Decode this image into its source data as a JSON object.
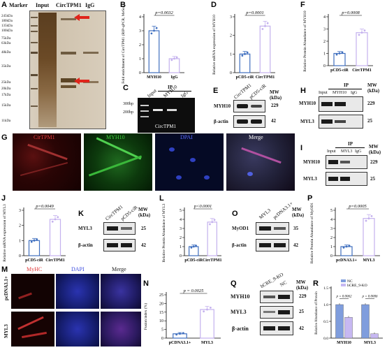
{
  "panels": {
    "A": {
      "letter": "A",
      "lanes": [
        "Marker",
        "Input",
        "CircTPM1",
        "IgG"
      ],
      "mw": [
        "245kDa",
        "180kDa",
        "135kDa",
        "100kDa",
        "75kDa",
        "63kDa",
        "48kDa",
        "35kDa",
        "25kDa",
        "20kDa",
        "17kDa",
        "15kDa",
        "11kDa"
      ]
    },
    "B": {
      "letter": "B",
      "ylabel": "Fold enrichment of CircTPM1 (RIP-qPCR, MeSo)",
      "pval": "p=0.0032",
      "categories": [
        "MYH10",
        "IgG"
      ],
      "values": [
        3.0,
        1.0
      ],
      "ylim": [
        0,
        4
      ],
      "ticks": [
        "0",
        "1",
        "2",
        "3",
        "4"
      ]
    },
    "C": {
      "letter": "C",
      "bp": [
        "300bp",
        "200bp"
      ],
      "lanes": [
        "Input",
        "MYH10",
        "IgG"
      ],
      "ip": "IP",
      "product": "CircTPM1"
    },
    "D": {
      "letter": "D",
      "ylabel": "Relative mRNA expression of MYH10",
      "pval": "p=0.0001",
      "categories": [
        "pCD5-ciR",
        "CircTPM1"
      ],
      "values": [
        1.0,
        2.5
      ],
      "ylim": [
        0,
        3
      ],
      "ticks": [
        "0",
        "1",
        "2",
        "3"
      ]
    },
    "E": {
      "letter": "E",
      "lanes": [
        "CircTPM1",
        "pCD5-ciR"
      ],
      "rows": [
        "MYH10",
        "β-actin"
      ],
      "mw_head": "MW (kDa)",
      "mw": [
        "229",
        "42"
      ]
    },
    "F": {
      "letter": "F",
      "ylabel": "Relative Protein Abundance of MYH10",
      "pval": "p=0.0008",
      "categories": [
        "pCD5-ciR",
        "CircTPM1"
      ],
      "values": [
        1.0,
        2.7
      ],
      "ylim": [
        0,
        4
      ],
      "ticks": [
        "0",
        "1",
        "2",
        "3",
        "4"
      ]
    },
    "G": {
      "letter": "G",
      "titles": [
        "CirTPM1",
        "MYH10",
        "DPAI",
        "Merge"
      ]
    },
    "H": {
      "letter": "H",
      "lanes": [
        "Input",
        "MYH10",
        "IgG"
      ],
      "ip": "IP",
      "rows": [
        "MYH10",
        "MYL3"
      ],
      "mw_head": "MW (kDa)",
      "mw": [
        "229",
        "25"
      ]
    },
    "I": {
      "letter": "I",
      "lanes": [
        "Input",
        "MYL3",
        "IgG"
      ],
      "ip": "IP",
      "rows": [
        "MYH10",
        "MYL3"
      ],
      "mw_head": "MW (kDa)",
      "mw": [
        "229",
        "25"
      ]
    },
    "J": {
      "letter": "J",
      "ylabel": "Relative mRNA expression of MYL3",
      "pval": "p=0.0049",
      "categories": [
        "pCD5-ciR",
        "CircTPM1"
      ],
      "values": [
        1.0,
        2.4
      ],
      "ylim": [
        0,
        3
      ],
      "ticks": [
        "0",
        "1",
        "2",
        "3"
      ]
    },
    "K": {
      "letter": "K",
      "lanes": [
        "CircTPM1",
        "pCD5-ciR"
      ],
      "rows": [
        "MYL3",
        "β-actin"
      ],
      "mw_head": "MW (kDa)",
      "mw": [
        "25",
        "42"
      ]
    },
    "L": {
      "letter": "L",
      "ylabel": "Relative Protein Abundance of MYL3",
      "pval": "p<0.0001",
      "categories": [
        "pCD5-ciR",
        "CircTPM1"
      ],
      "values": [
        1.0,
        3.7
      ],
      "ylim": [
        0,
        5
      ],
      "ticks": [
        "0",
        "1",
        "2",
        "3",
        "4",
        "5"
      ]
    },
    "O": {
      "letter": "O",
      "lanes": [
        "MYL3",
        "pcDNA3.1+"
      ],
      "rows": [
        "MyOD1",
        "β-actin"
      ],
      "mw_head": "MW (kDa)",
      "mw": [
        "35",
        "42"
      ]
    },
    "P": {
      "letter": "P",
      "ylabel": "Relative Protein Abundance of MyOD1",
      "pval": "p=0.0005",
      "categories": [
        "pcDNA3.1+",
        "MYL3"
      ],
      "values": [
        1.0,
        4.1
      ],
      "ylim": [
        0,
        5
      ],
      "ticks": [
        "0",
        "1",
        "2",
        "3",
        "4",
        "5"
      ]
    },
    "M": {
      "letter": "M",
      "titles": [
        "MyHC",
        "DAPI",
        "Merge"
      ],
      "rows": [
        "pcDNA3.1+",
        "MYL3"
      ]
    },
    "N": {
      "letter": "N",
      "ylabel": "Fusion index (%)",
      "pval": "p = 0.0025",
      "categories": [
        "pCDNA3.1+",
        "MYL3"
      ],
      "values": [
        2.5,
        16.5
      ],
      "ylim": [
        0,
        25
      ],
      "ticks": [
        "0",
        "5",
        "10",
        "15",
        "20",
        "25"
      ]
    },
    "Q": {
      "letter": "Q",
      "lanes": [
        "bCRE_9-KO",
        "NC"
      ],
      "rows": [
        "MYH10",
        "MYL3",
        "β-actin"
      ],
      "mw_head": "MW (kDa)",
      "mw": [
        "229",
        "25",
        "42"
      ]
    },
    "R": {
      "letter": "R",
      "ylabel": "Relative Abundance of Protein",
      "legend": [
        "NC",
        "bCRE_9-KO"
      ],
      "categories": [
        "MYH10",
        "MYL3"
      ],
      "nc": [
        1.0,
        1.0
      ],
      "ko": [
        0.62,
        0.13
      ],
      "pvals": [
        "p = 0.0062",
        "p = 0.0006"
      ],
      "ylim": [
        0,
        1.5
      ],
      "ticks": [
        "0.0",
        "0.5",
        "1.0",
        "1.5"
      ]
    }
  },
  "colors": {
    "bar_blue": "#3f6fbf",
    "bar_purple": "#c4b1ee",
    "nc_blue": "#7f9ddd",
    "ko_purple": "#c7b8f2",
    "red_arrow": "#e0241b"
  }
}
